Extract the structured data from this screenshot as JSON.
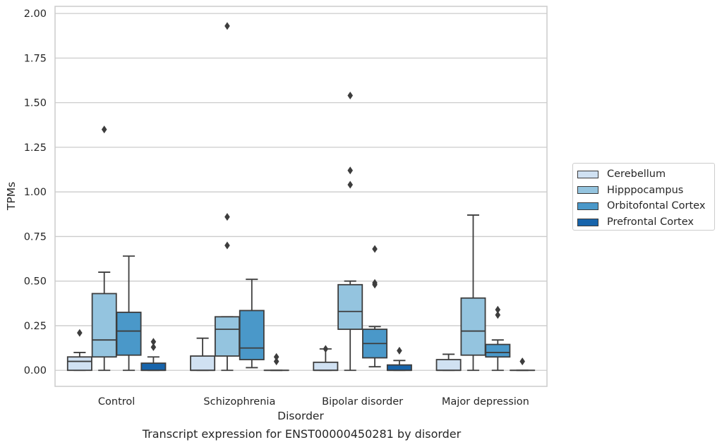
{
  "chart_data": {
    "type": "box",
    "title": "Transcript expression for ENST00000450281 by disorder",
    "xlabel": "Disorder",
    "ylabel": "TPMs",
    "ylim": [
      -0.09,
      2.04
    ],
    "yticks": [
      "0.00",
      "0.25",
      "0.50",
      "0.75",
      "1.00",
      "1.25",
      "1.50",
      "1.75",
      "2.00"
    ],
    "grid": true,
    "legend_position": "right",
    "categories": [
      "Control",
      "Schizophrenia",
      "Bipolar disorder",
      "Major depression"
    ],
    "series": [
      {
        "name": "Cerebellum",
        "color": "#d0e1f2",
        "boxes": [
          {
            "whislo": 0.0,
            "q1": 0.0,
            "med": 0.05,
            "q3": 0.075,
            "whishi": 0.1,
            "fliers": [
              0.21
            ]
          },
          {
            "whislo": 0.0,
            "q1": 0.0,
            "med": 0.0,
            "q3": 0.08,
            "whishi": 0.18,
            "fliers": []
          },
          {
            "whislo": 0.0,
            "q1": 0.0,
            "med": 0.0,
            "q3": 0.045,
            "whishi": 0.12,
            "fliers": [
              0.12
            ]
          },
          {
            "whislo": 0.0,
            "q1": 0.0,
            "med": 0.0,
            "q3": 0.06,
            "whishi": 0.09,
            "fliers": []
          }
        ]
      },
      {
        "name": "Hipppocampus",
        "color": "#94c4df",
        "boxes": [
          {
            "whislo": 0.0,
            "q1": 0.075,
            "med": 0.17,
            "q3": 0.43,
            "whishi": 0.55,
            "fliers": [
              1.35
            ]
          },
          {
            "whislo": 0.0,
            "q1": 0.08,
            "med": 0.23,
            "q3": 0.3,
            "whishi": 0.3,
            "fliers": [
              0.7,
              0.86,
              1.93
            ]
          },
          {
            "whislo": 0.0,
            "q1": 0.23,
            "med": 0.33,
            "q3": 0.48,
            "whishi": 0.5,
            "fliers": [
              1.04,
              1.12,
              1.54
            ]
          },
          {
            "whislo": 0.0,
            "q1": 0.085,
            "med": 0.22,
            "q3": 0.405,
            "whishi": 0.87,
            "fliers": []
          }
        ]
      },
      {
        "name": "Orbitofontal Cortex",
        "color": "#4a98c9",
        "boxes": [
          {
            "whislo": 0.0,
            "q1": 0.085,
            "med": 0.22,
            "q3": 0.325,
            "whishi": 0.64,
            "fliers": []
          },
          {
            "whislo": 0.015,
            "q1": 0.06,
            "med": 0.125,
            "q3": 0.335,
            "whishi": 0.51,
            "fliers": []
          },
          {
            "whislo": 0.02,
            "q1": 0.07,
            "med": 0.15,
            "q3": 0.23,
            "whishi": 0.245,
            "fliers": [
              0.48,
              0.49,
              0.68
            ]
          },
          {
            "whislo": 0.0,
            "q1": 0.075,
            "med": 0.1,
            "q3": 0.145,
            "whishi": 0.17,
            "fliers": [
              0.31,
              0.34
            ]
          }
        ]
      },
      {
        "name": "Prefrontal Cortex",
        "color": "#1764ab",
        "boxes": [
          {
            "whislo": 0.0,
            "q1": 0.0,
            "med": 0.0,
            "q3": 0.04,
            "whishi": 0.075,
            "fliers": [
              0.13,
              0.16
            ]
          },
          {
            "whislo": 0.0,
            "q1": 0.0,
            "med": 0.0,
            "q3": 0.0,
            "whishi": 0.0,
            "fliers": [
              0.05,
              0.075
            ]
          },
          {
            "whislo": 0.0,
            "q1": 0.0,
            "med": 0.0,
            "q3": 0.03,
            "whishi": 0.055,
            "fliers": [
              0.11
            ]
          },
          {
            "whislo": 0.0,
            "q1": 0.0,
            "med": 0.0,
            "q3": 0.0,
            "whishi": 0.0,
            "fliers": [
              0.05
            ]
          }
        ]
      }
    ]
  }
}
